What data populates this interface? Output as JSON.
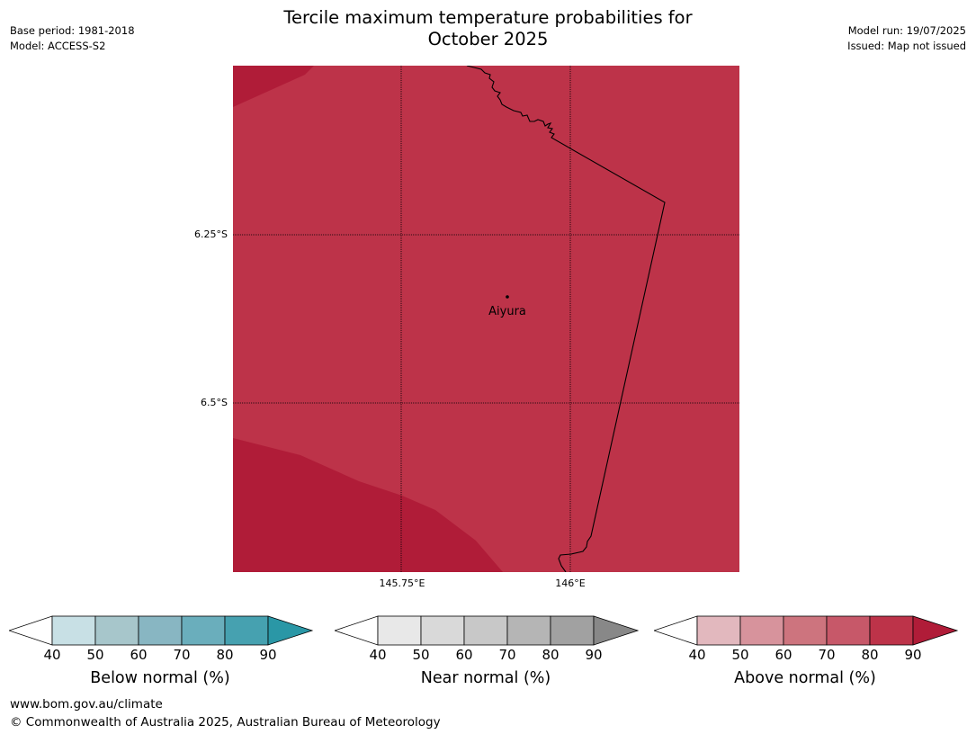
{
  "title_line1": "Tercile maximum temperature probabilities for",
  "title_line2": "October 2025",
  "meta_left": {
    "base_period": "Base period: 1981-2018",
    "model": "Model: ACCESS-S2"
  },
  "meta_right": {
    "model_run": "Model run: 19/07/2025",
    "issued": "Issued: Map not issued"
  },
  "map": {
    "lat_ticks": [
      "6.25°S",
      "6.5°S"
    ],
    "lon_ticks": [
      "145.75°E",
      "146°E"
    ],
    "place": "Aiyura",
    "fill_main": "#bd3349",
    "fill_dark": "#b01c38"
  },
  "colorbars": [
    {
      "label": "Below normal (%)",
      "ticks": [
        "40",
        "50",
        "60",
        "70",
        "80",
        "90"
      ],
      "colors": [
        "#ffffff",
        "#c8e0e5",
        "#a7c6cb",
        "#88b6c2",
        "#6aaebc",
        "#46a1b0",
        "#2a97a6"
      ]
    },
    {
      "label": "Near normal (%)",
      "ticks": [
        "40",
        "50",
        "60",
        "70",
        "80",
        "90"
      ],
      "colors": [
        "#ffffff",
        "#e8e8e8",
        "#d9d9d9",
        "#c8c8c8",
        "#b5b5b5",
        "#a1a1a1",
        "#888888"
      ]
    },
    {
      "label": "Above normal (%)",
      "ticks": [
        "40",
        "50",
        "60",
        "70",
        "80",
        "90"
      ],
      "colors": [
        "#ffffff",
        "#e2b8be",
        "#d7939c",
        "#cd747e",
        "#c75869",
        "#bd3349",
        "#b01c38"
      ]
    }
  ],
  "footer": {
    "url": "www.bom.gov.au/climate",
    "copyright": "© Commonwealth of Australia 2025, Australian Bureau of Meteorology"
  }
}
